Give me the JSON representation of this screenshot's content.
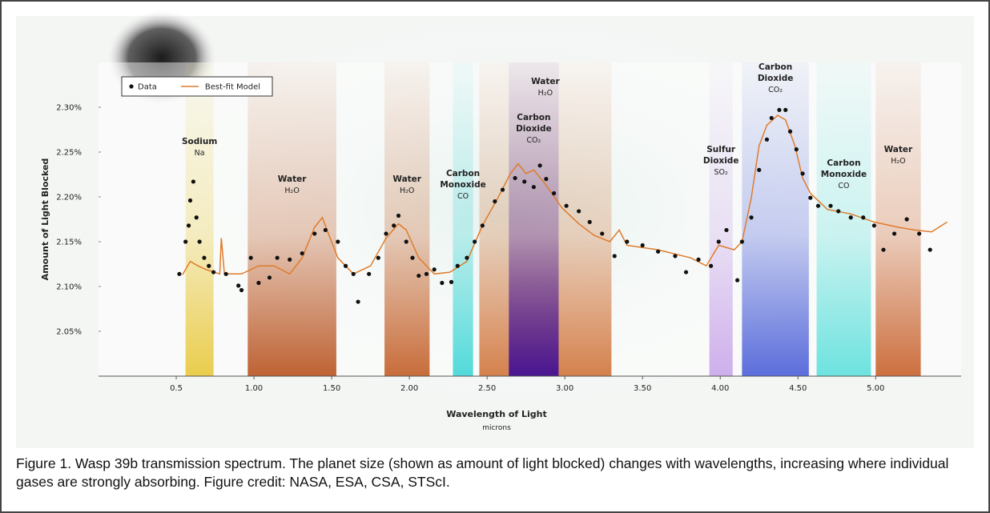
{
  "chart_data": {
    "type": "scatter",
    "x_label": "Wavelength of Light",
    "x_unit": "microns",
    "y_label": "Amount of Light Blocked",
    "xlim": [
      0,
      5.55
    ],
    "ylim": [
      2.0,
      2.35
    ],
    "xticks": [
      0.5,
      {
        "value": 1,
        "label": "1.00"
      },
      {
        "value": 1.5,
        "label": "1.50"
      },
      {
        "value": 2,
        "label": "2.00"
      },
      {
        "value": 2.5,
        "label": "2.50"
      },
      {
        "value": 3,
        "label": "3.00"
      },
      {
        "value": 3.5,
        "label": "3.50"
      },
      {
        "value": 4,
        "label": "4.00"
      },
      {
        "value": 4.5,
        "label": "4.50"
      },
      {
        "value": 5,
        "label": "5.00"
      }
    ],
    "yticks": [
      {
        "value": 2.05,
        "label": "2.05%"
      },
      {
        "value": 2.1,
        "label": "2.10%"
      },
      {
        "value": 2.15,
        "label": "2.15%"
      },
      {
        "value": 2.2,
        "label": "2.20%"
      },
      {
        "value": 2.25,
        "label": "2.25%"
      },
      {
        "value": 2.3,
        "label": "2.30%"
      }
    ],
    "legend": "upper left",
    "series": [
      {
        "name": "Data",
        "type": "scatter",
        "color": "#111111",
        "x": [
          0.52,
          0.56,
          0.58,
          0.59,
          0.61,
          0.63,
          0.65,
          0.68,
          0.71,
          0.74,
          0.82,
          0.9,
          0.92,
          0.98,
          1.03,
          1.1,
          1.15,
          1.23,
          1.31,
          1.39,
          1.46,
          1.54,
          1.59,
          1.64,
          1.67,
          1.74,
          1.8,
          1.85,
          1.9,
          1.93,
          1.98,
          2.02,
          2.06,
          2.11,
          2.16,
          2.21,
          2.27,
          2.31,
          2.37,
          2.42,
          2.47,
          2.55,
          2.6,
          2.68,
          2.74,
          2.8,
          2.84,
          2.88,
          2.93,
          3.01,
          3.09,
          3.16,
          3.24,
          3.32,
          3.4,
          3.5,
          3.6,
          3.71,
          3.78,
          3.86,
          3.94,
          3.99,
          4.04,
          4.11,
          4.14,
          4.2,
          4.25,
          4.3,
          4.33,
          4.38,
          4.42,
          4.45,
          4.49,
          4.53,
          4.58,
          4.63,
          4.71,
          4.76,
          4.84,
          4.92,
          4.99,
          5.05,
          5.12,
          5.2,
          5.28,
          5.35
        ],
        "values": [
          2.114,
          2.15,
          2.168,
          2.196,
          2.217,
          2.177,
          2.15,
          2.132,
          2.123,
          2.116,
          2.114,
          2.101,
          2.096,
          2.132,
          2.104,
          2.11,
          2.132,
          2.13,
          2.137,
          2.159,
          2.163,
          2.15,
          2.123,
          2.114,
          2.083,
          2.114,
          2.132,
          2.159,
          2.168,
          2.179,
          2.15,
          2.132,
          2.112,
          2.114,
          2.119,
          2.104,
          2.105,
          2.123,
          2.132,
          2.15,
          2.168,
          2.195,
          2.208,
          2.221,
          2.217,
          2.211,
          2.235,
          2.22,
          2.204,
          2.19,
          2.184,
          2.172,
          2.159,
          2.134,
          2.15,
          2.146,
          2.139,
          2.134,
          2.116,
          2.13,
          2.123,
          2.15,
          2.163,
          2.107,
          2.15,
          2.177,
          2.23,
          2.264,
          2.288,
          2.297,
          2.297,
          2.273,
          2.253,
          2.226,
          2.199,
          2.19,
          2.19,
          2.184,
          2.177,
          2.177,
          2.168,
          2.141,
          2.159,
          2.175,
          2.159,
          2.141
        ]
      },
      {
        "name": "Best-fit Model",
        "type": "line",
        "color": "#e07b2a",
        "x": [
          0.54,
          0.59,
          0.64,
          0.69,
          0.78,
          0.79,
          0.81,
          0.92,
          1.03,
          1.13,
          1.23,
          1.31,
          1.39,
          1.44,
          1.49,
          1.54,
          1.64,
          1.75,
          1.85,
          1.93,
          1.98,
          2.06,
          2.16,
          2.26,
          2.37,
          2.47,
          2.57,
          2.65,
          2.7,
          2.75,
          2.8,
          2.88,
          2.98,
          3.09,
          3.19,
          3.29,
          3.35,
          3.4,
          3.6,
          3.81,
          3.91,
          3.99,
          4.09,
          4.14,
          4.2,
          4.25,
          4.3,
          4.37,
          4.42,
          4.48,
          4.53,
          4.58,
          4.69,
          4.84,
          4.99,
          5.15,
          5.25,
          5.36,
          5.46
        ],
        "values": [
          2.113,
          2.128,
          2.123,
          2.119,
          2.114,
          2.154,
          2.114,
          2.114,
          2.123,
          2.123,
          2.114,
          2.132,
          2.166,
          2.177,
          2.154,
          2.132,
          2.114,
          2.123,
          2.154,
          2.17,
          2.163,
          2.132,
          2.114,
          2.116,
          2.128,
          2.168,
          2.199,
          2.226,
          2.237,
          2.226,
          2.23,
          2.213,
          2.188,
          2.17,
          2.157,
          2.15,
          2.163,
          2.146,
          2.141,
          2.132,
          2.123,
          2.146,
          2.141,
          2.15,
          2.199,
          2.257,
          2.28,
          2.291,
          2.286,
          2.257,
          2.221,
          2.204,
          2.186,
          2.181,
          2.172,
          2.166,
          2.163,
          2.161,
          2.172
        ]
      }
    ],
    "bands": [
      {
        "label": "Sodium",
        "formula": "Na",
        "x0": 0.56,
        "x1": 0.74,
        "color": "#e8c83a"
      },
      {
        "label": "Water",
        "formula": "H₂O",
        "x0": 0.96,
        "x1": 1.53,
        "color": "#b8521e"
      },
      {
        "label": "Water",
        "formula": "H₂O",
        "x0": 1.84,
        "x1": 2.13,
        "color": "#c25d25"
      },
      {
        "label": "Carbon Monoxide",
        "formula": "CO",
        "x0": 2.28,
        "x1": 2.41,
        "color": "#3fd6d6"
      },
      {
        "label": "Water",
        "formula": "H₂O",
        "x0": 2.45,
        "x1": 3.3,
        "color": "#d0743a"
      },
      {
        "label": "Carbon Dioxide",
        "formula": "CO₂",
        "x0": 2.64,
        "x1": 2.96,
        "color": "#3a0a9a"
      },
      {
        "label": "Sulfur Dioxide",
        "formula": "SO₂",
        "x0": 3.93,
        "x1": 4.08,
        "color": "#c9a6ea"
      },
      {
        "label": "Carbon Dioxide",
        "formula": "CO₂",
        "x0": 4.14,
        "x1": 4.57,
        "color": "#4a5ed8"
      },
      {
        "label": "Carbon Monoxide",
        "formula": "CO",
        "x0": 4.62,
        "x1": 4.97,
        "color": "#5ee0dc"
      },
      {
        "label": "Water",
        "formula": "H₂O",
        "x0": 5.0,
        "x1": 5.29,
        "color": "#c8602a"
      }
    ]
  },
  "caption": "Figure 1. Wasp 39b transmission spectrum. The planet size (shown as amount of light blocked) changes with wavelengths, increasing where individual gases are strongly absorbing. Figure credit: NASA, ESA, CSA, STScI."
}
